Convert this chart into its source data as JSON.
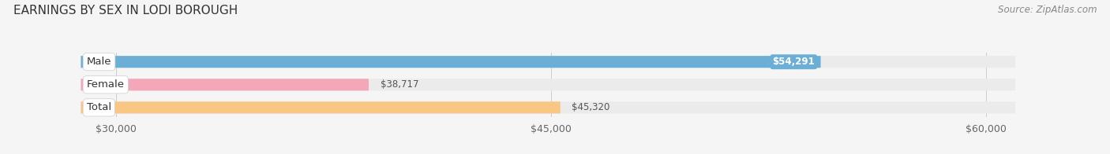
{
  "title": "EARNINGS BY SEX IN LODI BOROUGH",
  "source": "Source: ZipAtlas.com",
  "categories": [
    "Male",
    "Female",
    "Total"
  ],
  "values": [
    54291,
    38717,
    45320
  ],
  "bar_colors": [
    "#6baed6",
    "#f4a7b9",
    "#f9c784"
  ],
  "value_labels": [
    "$54,291",
    "$38,717",
    "$45,320"
  ],
  "bar_bg_color": "#ebebeb",
  "xlim_min": 30000,
  "xlim_max": 60000,
  "xticks": [
    30000,
    45000,
    60000
  ],
  "xtick_labels": [
    "$30,000",
    "$45,000",
    "$60,000"
  ],
  "title_fontsize": 11,
  "source_fontsize": 8.5,
  "label_fontsize": 9.5,
  "value_fontsize": 8.5,
  "tick_fontsize": 9,
  "background_color": "#f5f5f5",
  "fig_width": 14.06,
  "fig_height": 1.96,
  "dpi": 100
}
